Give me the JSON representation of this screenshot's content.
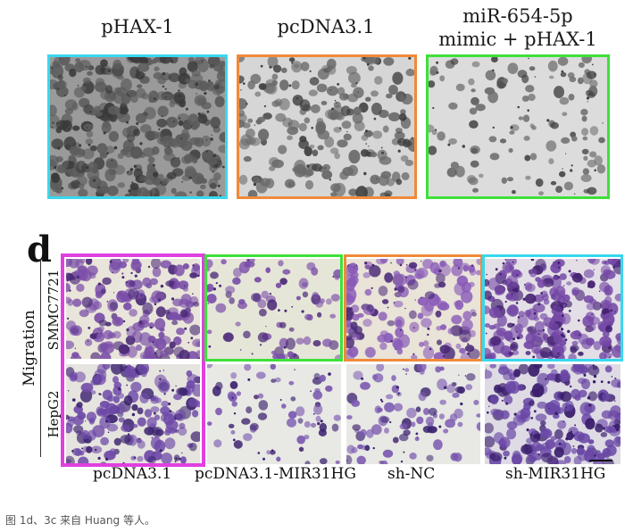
{
  "top_row": {
    "labels": [
      "pHAX-1",
      "pcDNA3.1",
      "miR-654-5p",
      "mimic + pHAX-1"
    ],
    "frame_colors": [
      "#38d8ee",
      "#f08a3a",
      "#3ee03a"
    ]
  },
  "panel_d": {
    "letter": "d",
    "side_label": "Migration",
    "row_labels": [
      "SMMC7721",
      "HepG2"
    ],
    "column_labels": [
      "pcDNA3.1",
      "pcDNA3.1-MIR31HG",
      "sh-NC",
      "sh-MIR31HG"
    ],
    "frame_colors": [
      "#e040e0",
      "#3ee03a",
      "#f08a3a",
      "#38d8ee"
    ]
  },
  "caption": "图 1d、3c 来自 Huang 等人。"
}
